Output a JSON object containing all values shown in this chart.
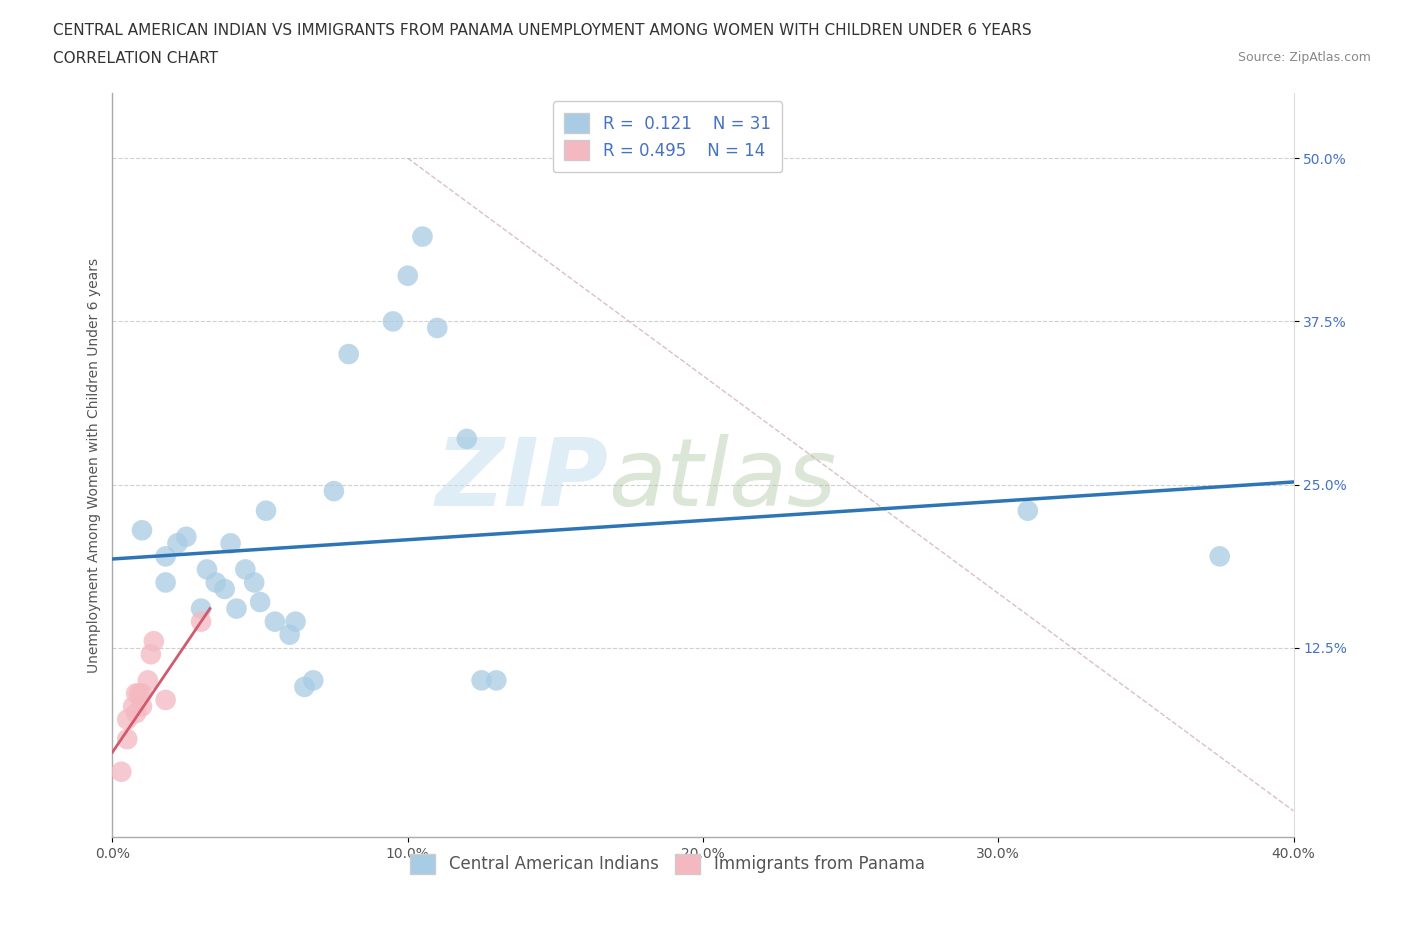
{
  "title_line1": "CENTRAL AMERICAN INDIAN VS IMMIGRANTS FROM PANAMA UNEMPLOYMENT AMONG WOMEN WITH CHILDREN UNDER 6 YEARS",
  "title_line2": "CORRELATION CHART",
  "source": "Source: ZipAtlas.com",
  "ylabel": "Unemployment Among Women with Children Under 6 years",
  "watermark_zip": "ZIP",
  "watermark_atlas": "atlas",
  "xlim": [
    0.0,
    0.4
  ],
  "ylim": [
    -0.02,
    0.55
  ],
  "xticks": [
    0.0,
    0.1,
    0.2,
    0.3,
    0.4
  ],
  "xtick_labels": [
    "0.0%",
    "10.0%",
    "20.0%",
    "30.0%",
    "40.0%"
  ],
  "ytick_positions": [
    0.125,
    0.25,
    0.375,
    0.5
  ],
  "ytick_labels": [
    "12.5%",
    "25.0%",
    "37.5%",
    "50.0%"
  ],
  "blue_R": 0.121,
  "blue_N": 31,
  "pink_R": 0.495,
  "pink_N": 14,
  "blue_color": "#a8cce4",
  "pink_color": "#f4b8c1",
  "blue_line_color": "#2e75b6",
  "pink_line_color": "#d05a6e",
  "ref_line_color": "#d0b0b8",
  "grid_color": "#d0d0d0",
  "background_color": "#ffffff",
  "blue_x": [
    0.01,
    0.018,
    0.018,
    0.022,
    0.025,
    0.03,
    0.032,
    0.035,
    0.038,
    0.04,
    0.042,
    0.045,
    0.048,
    0.05,
    0.052,
    0.055,
    0.06,
    0.062,
    0.065,
    0.068,
    0.075,
    0.08,
    0.095,
    0.1,
    0.105,
    0.11,
    0.12,
    0.125,
    0.13,
    0.31,
    0.375
  ],
  "blue_y": [
    0.215,
    0.195,
    0.175,
    0.205,
    0.21,
    0.155,
    0.185,
    0.175,
    0.17,
    0.205,
    0.155,
    0.185,
    0.175,
    0.16,
    0.23,
    0.145,
    0.135,
    0.145,
    0.095,
    0.1,
    0.245,
    0.35,
    0.375,
    0.41,
    0.44,
    0.37,
    0.285,
    0.1,
    0.1,
    0.23,
    0.195
  ],
  "pink_x": [
    0.003,
    0.005,
    0.005,
    0.007,
    0.008,
    0.008,
    0.009,
    0.01,
    0.01,
    0.012,
    0.013,
    0.014,
    0.018,
    0.03
  ],
  "pink_y": [
    0.03,
    0.055,
    0.07,
    0.08,
    0.075,
    0.09,
    0.09,
    0.08,
    0.09,
    0.1,
    0.12,
    0.13,
    0.085,
    0.145
  ],
  "blue_line_x0": 0.0,
  "blue_line_y0": 0.193,
  "blue_line_x1": 0.4,
  "blue_line_y1": 0.252,
  "pink_line_x0": 0.0,
  "pink_line_y0": 0.045,
  "pink_line_x1": 0.033,
  "pink_line_y1": 0.155,
  "ref_line_x0": 0.1,
  "ref_line_y0": 0.5,
  "ref_line_x1": 0.4,
  "ref_line_y1": 0.0,
  "title_fontsize": 11,
  "axis_label_fontsize": 10,
  "tick_fontsize": 10,
  "legend_fontsize": 12,
  "source_fontsize": 9
}
